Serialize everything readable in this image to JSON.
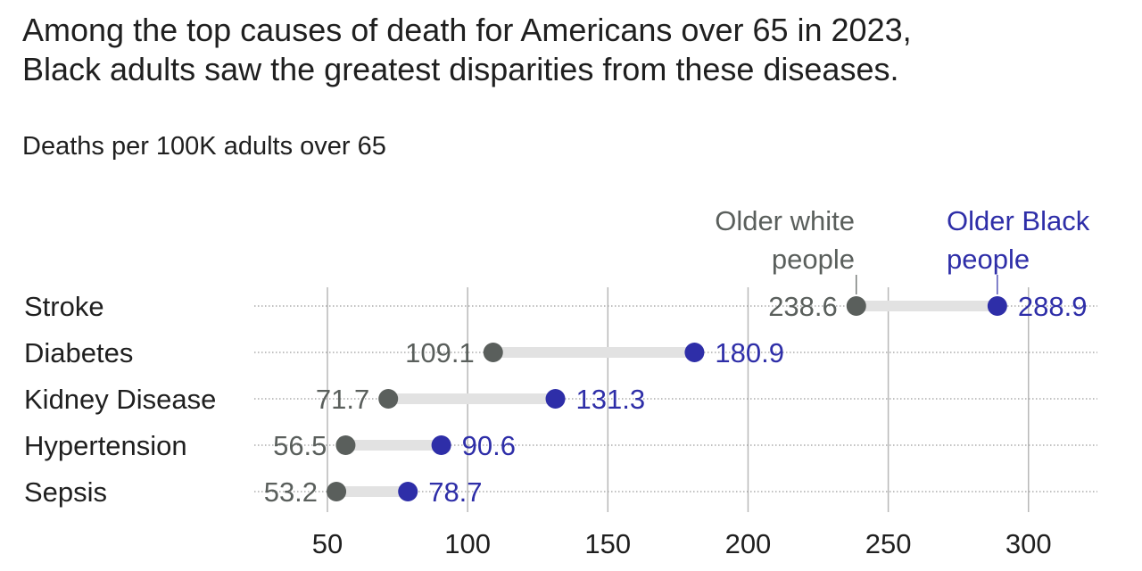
{
  "header": {
    "title_line1": "Among the top causes of death for Americans over 65 in 2023,",
    "title_line2": "Black adults saw the greatest disparities from these diseases.",
    "subtitle": "Deaths per 100K adults over 65"
  },
  "colors": {
    "white_series": "#5a5f5c",
    "black_series": "#2e2ea8",
    "connector": "#e2e2e2",
    "gridline": "#b8b8b8",
    "row_rule": "#9a9a9a"
  },
  "chart_data": {
    "type": "dot-plot",
    "title": "Among the top causes of death for Americans over 65 in 2023, Black adults saw the greatest disparities from these diseases.",
    "subtitle": "Deaths per 100K adults over 65",
    "categories": [
      "Stroke",
      "Diabetes",
      "Kidney Disease",
      "Hypertension",
      "Sepsis"
    ],
    "series": [
      {
        "name": "Older white people",
        "values": [
          238.6,
          109.1,
          71.7,
          56.5,
          53.2
        ],
        "labels": [
          "238.6",
          "109.1",
          "71.7",
          "56.5",
          "53.2"
        ]
      },
      {
        "name": "Older Black people",
        "values": [
          288.9,
          180.9,
          131.3,
          90.6,
          78.7
        ],
        "labels": [
          "288.9",
          "180.9",
          "131.3",
          "90.6",
          "78.7"
        ]
      }
    ],
    "legend": [
      {
        "lines": [
          "Older white",
          "people"
        ]
      },
      {
        "lines": [
          "Older Black",
          "people"
        ]
      }
    ],
    "xticks": [
      50,
      100,
      150,
      200,
      250,
      300
    ],
    "xlim": [
      20,
      325
    ],
    "grid": true,
    "legend_placement": "top, above first row"
  }
}
